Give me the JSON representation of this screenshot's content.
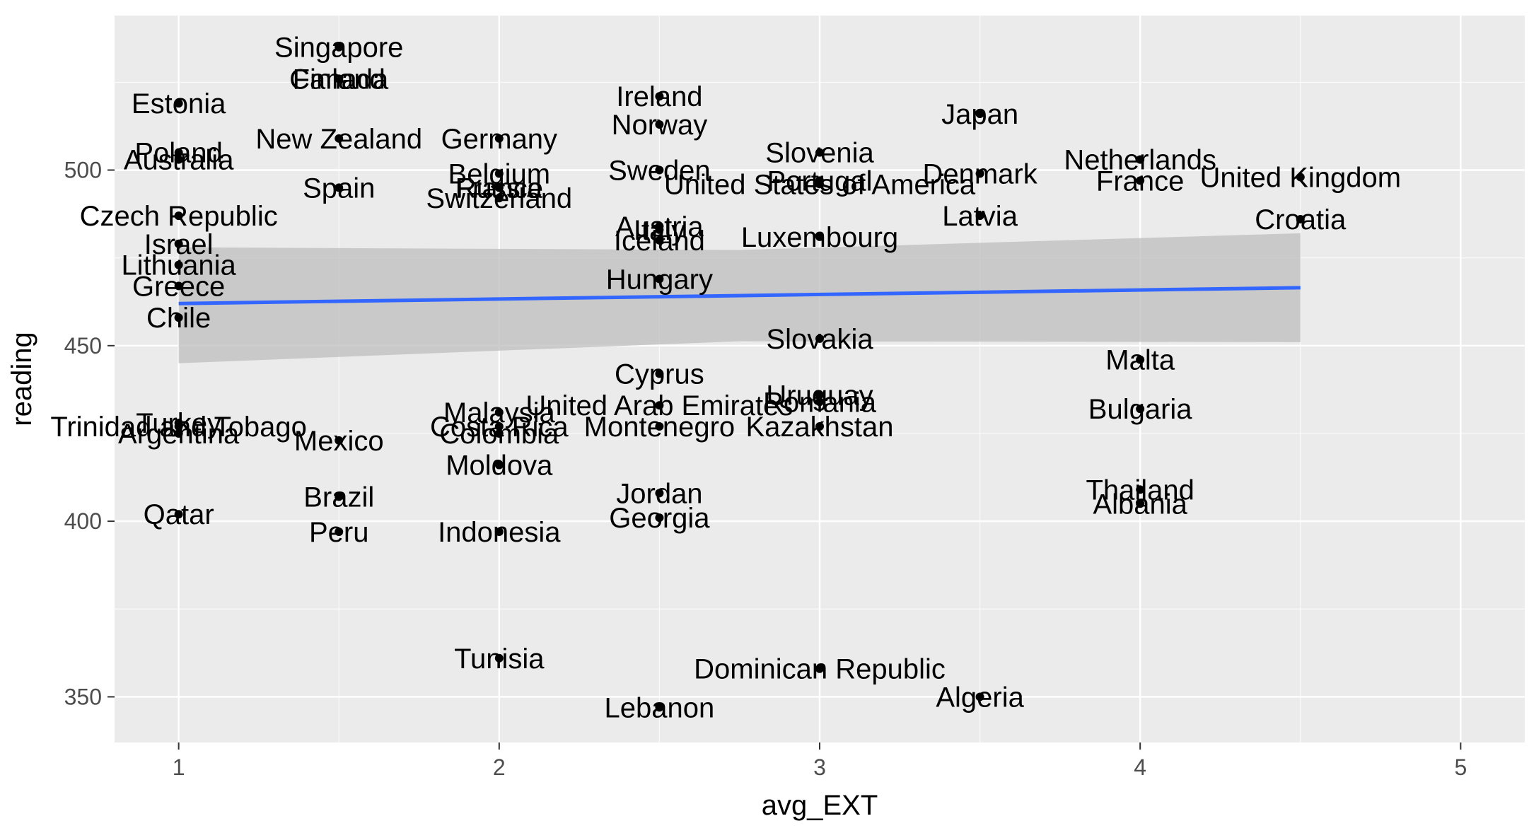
{
  "chart_data": {
    "type": "scatter",
    "xlabel": "avg_EXT",
    "ylabel": "reading",
    "xlim": [
      0.8,
      5.2
    ],
    "ylim": [
      337,
      544
    ],
    "xticks": [
      1,
      2,
      3,
      4,
      5
    ],
    "yticks": [
      350,
      400,
      450,
      500
    ],
    "grid": true,
    "colors": {
      "panel": "#ebebeb",
      "grid_major": "#ffffff",
      "point": "#000000",
      "trend": "#3366ff",
      "ribbon": "#bdbdbd"
    },
    "trend": {
      "method": "linear",
      "x_range": [
        1,
        4.5
      ],
      "y_start": 462,
      "y_end": 466.5,
      "ci_low": [
        445,
        451
      ],
      "ci_high": [
        478,
        482
      ]
    },
    "points": [
      {
        "label": "Singapore",
        "x": 1.5,
        "y": 535
      },
      {
        "label": "Finland",
        "x": 1.5,
        "y": 526
      },
      {
        "label": "Canada",
        "x": 1.5,
        "y": 526
      },
      {
        "label": "Estonia",
        "x": 1.0,
        "y": 519
      },
      {
        "label": "New Zealand",
        "x": 1.5,
        "y": 509
      },
      {
        "label": "Poland",
        "x": 1.0,
        "y": 505
      },
      {
        "label": "Australia",
        "x": 1.0,
        "y": 503
      },
      {
        "label": "Spain",
        "x": 1.5,
        "y": 495
      },
      {
        "label": "Czech Republic",
        "x": 1.0,
        "y": 487
      },
      {
        "label": "Israel",
        "x": 1.0,
        "y": 479
      },
      {
        "label": "Lithuania",
        "x": 1.0,
        "y": 473
      },
      {
        "label": "Greece",
        "x": 1.0,
        "y": 467
      },
      {
        "label": "Chile",
        "x": 1.0,
        "y": 458
      },
      {
        "label": "Germany",
        "x": 2.0,
        "y": 509
      },
      {
        "label": "Belgium",
        "x": 2.0,
        "y": 499
      },
      {
        "label": "France",
        "x": 2.0,
        "y": 495
      },
      {
        "label": "Russia",
        "x": 2.0,
        "y": 495
      },
      {
        "label": "Switzerland",
        "x": 2.0,
        "y": 492
      },
      {
        "label": "Ireland",
        "x": 2.5,
        "y": 521
      },
      {
        "label": "Norway",
        "x": 2.5,
        "y": 513
      },
      {
        "label": "Sweden",
        "x": 2.5,
        "y": 500
      },
      {
        "label": "Austria",
        "x": 2.5,
        "y": 484
      },
      {
        "label": "Italy",
        "x": 2.5,
        "y": 483
      },
      {
        "label": "Iceland",
        "x": 2.5,
        "y": 480
      },
      {
        "label": "Hungary",
        "x": 2.5,
        "y": 469
      },
      {
        "label": "Slovenia",
        "x": 3.0,
        "y": 505
      },
      {
        "label": "Portugal",
        "x": 3.0,
        "y": 497
      },
      {
        "label": "United States of America",
        "x": 3.0,
        "y": 496
      },
      {
        "label": "Luxembourg",
        "x": 3.0,
        "y": 481
      },
      {
        "label": "Slovakia",
        "x": 3.0,
        "y": 452
      },
      {
        "label": "Japan",
        "x": 3.5,
        "y": 516
      },
      {
        "label": "Denmark",
        "x": 3.5,
        "y": 499
      },
      {
        "label": "Latvia",
        "x": 3.5,
        "y": 487
      },
      {
        "label": "Netherlands",
        "x": 4.0,
        "y": 503
      },
      {
        "label": "France",
        "x": 4.0,
        "y": 497
      },
      {
        "label": "United Kingdom",
        "x": 4.5,
        "y": 498
      },
      {
        "label": "Croatia",
        "x": 4.5,
        "y": 486
      },
      {
        "label": "Malta",
        "x": 4.0,
        "y": 446
      },
      {
        "label": "Bulgaria",
        "x": 4.0,
        "y": 432
      },
      {
        "label": "Thailand",
        "x": 4.0,
        "y": 409
      },
      {
        "label": "Albania",
        "x": 4.0,
        "y": 405
      },
      {
        "label": "Cyprus",
        "x": 2.5,
        "y": 442
      },
      {
        "label": "United Arab Emirates",
        "x": 2.5,
        "y": 433
      },
      {
        "label": "Montenegro",
        "x": 2.5,
        "y": 427
      },
      {
        "label": "Jordan",
        "x": 2.5,
        "y": 408
      },
      {
        "label": "Georgia",
        "x": 2.5,
        "y": 401
      },
      {
        "label": "Lebanon",
        "x": 2.5,
        "y": 347
      },
      {
        "label": "Uruguay",
        "x": 3.0,
        "y": 436
      },
      {
        "label": "Romania",
        "x": 3.0,
        "y": 434
      },
      {
        "label": "Kazakhstan",
        "x": 3.0,
        "y": 427
      },
      {
        "label": "Dominican Republic",
        "x": 3.0,
        "y": 358
      },
      {
        "label": "Algeria",
        "x": 3.5,
        "y": 350
      },
      {
        "label": "Malaysia",
        "x": 2.0,
        "y": 431
      },
      {
        "label": "Costa Rica",
        "x": 2.0,
        "y": 427
      },
      {
        "label": "Colombia",
        "x": 2.0,
        "y": 425
      },
      {
        "label": "Moldova",
        "x": 2.0,
        "y": 416
      },
      {
        "label": "Indonesia",
        "x": 2.0,
        "y": 397
      },
      {
        "label": "Tunisia",
        "x": 2.0,
        "y": 361
      },
      {
        "label": "Mexico",
        "x": 1.5,
        "y": 423
      },
      {
        "label": "Brazil",
        "x": 1.5,
        "y": 407
      },
      {
        "label": "Peru",
        "x": 1.5,
        "y": 397
      },
      {
        "label": "Trinidad and Tobago",
        "x": 1.0,
        "y": 427
      },
      {
        "label": "Turkey",
        "x": 1.0,
        "y": 428
      },
      {
        "label": "Argentina",
        "x": 1.0,
        "y": 425
      },
      {
        "label": "Qatar",
        "x": 1.0,
        "y": 402
      }
    ]
  }
}
